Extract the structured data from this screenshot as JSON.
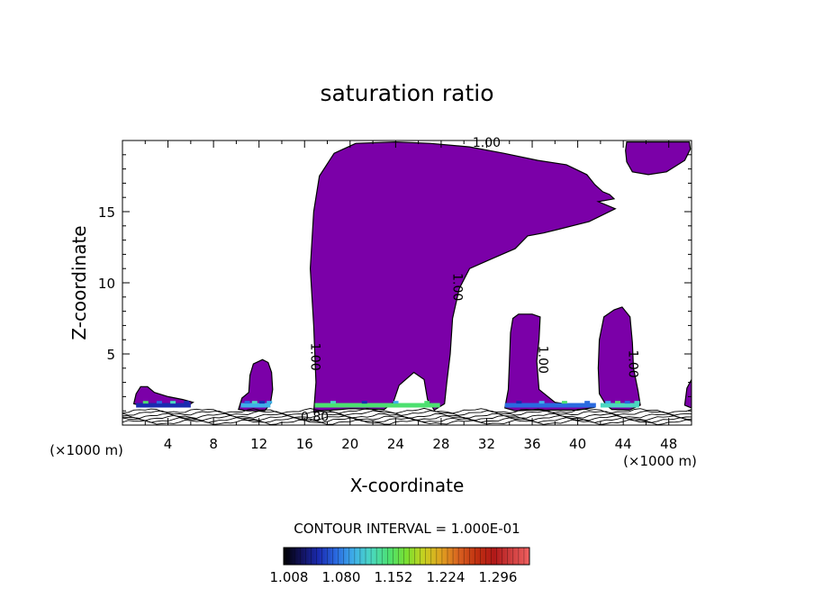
{
  "chart_data": {
    "type": "heatmap",
    "title": "saturation ratio",
    "xlabel": "X-coordinate",
    "ylabel": "Z-coordinate",
    "x_unit": "(×1000 m)",
    "xlim": [
      0,
      50
    ],
    "ylim": [
      0,
      20
    ],
    "x_ticks": [
      "4",
      "8",
      "12",
      "16",
      "20",
      "24",
      "28",
      "32",
      "36",
      "40",
      "44",
      "48"
    ],
    "y_ticks": [
      "5",
      "10",
      "15"
    ],
    "contour_labels": [
      {
        "text": "1.00",
        "x": 32,
        "y": 19.8,
        "angle": 0
      },
      {
        "text": "1.00",
        "x": 29.4,
        "y": 9.7,
        "angle": 90
      },
      {
        "text": "1.00",
        "x": 16.9,
        "y": 4.8,
        "angle": 90
      },
      {
        "text": "1.00",
        "x": 36.9,
        "y": 4.6,
        "angle": 90
      },
      {
        "text": "1.00",
        "x": 44.8,
        "y": 4.3,
        "angle": 90
      },
      {
        "text": "0.80",
        "x": 16.9,
        "y": 0.55,
        "angle": 0
      }
    ],
    "contour_interval": "CONTOUR INTERVAL = 1.000E-01",
    "colorbar": {
      "labels": [
        "1.008",
        "1.080",
        "1.152",
        "1.224",
        "1.296"
      ],
      "colors": [
        "#000000",
        "#12125a",
        "#1a2bb0",
        "#2a6ae0",
        "#3fb0e8",
        "#4ad8c0",
        "#4ce070",
        "#7adf30",
        "#c8d020",
        "#e0a020",
        "#d86020",
        "#c03010",
        "#b01818",
        "#d04040",
        "#f06060"
      ]
    },
    "fill_color": "#7b00a8",
    "saturated_regions": [
      {
        "name": "main-cloud",
        "points": [
          [
            16.8,
            0.9
          ],
          [
            17,
            3
          ],
          [
            16.8,
            7
          ],
          [
            16.5,
            11
          ],
          [
            16.8,
            15
          ],
          [
            17.3,
            17.5
          ],
          [
            18.6,
            19.1
          ],
          [
            20.5,
            19.8
          ],
          [
            24,
            19.9
          ],
          [
            27,
            19.8
          ],
          [
            30.5,
            19.55
          ],
          [
            33.5,
            19.1
          ],
          [
            36.5,
            18.6
          ],
          [
            39,
            18.3
          ],
          [
            40.8,
            17.6
          ],
          [
            41.5,
            16.9
          ],
          [
            42.2,
            16.4
          ],
          [
            42.8,
            16.2
          ],
          [
            43.2,
            15.9
          ],
          [
            41.8,
            15.7
          ],
          [
            43.3,
            15.2
          ],
          [
            41,
            14.3
          ],
          [
            38.5,
            13.8
          ],
          [
            37,
            13.5
          ],
          [
            35.6,
            13.3
          ],
          [
            34.5,
            12.4
          ],
          [
            32.5,
            11.7
          ],
          [
            30.5,
            11
          ],
          [
            29.6,
            9.6
          ],
          [
            29,
            7.5
          ],
          [
            28.8,
            5
          ],
          [
            28.5,
            3
          ],
          [
            28.3,
            1.5
          ],
          [
            27.4,
            1.05
          ],
          [
            26.8,
            1.8
          ],
          [
            26.5,
            3.2
          ],
          [
            25.6,
            3.7
          ],
          [
            24.3,
            2.8
          ],
          [
            23.8,
            1.6
          ],
          [
            23,
            1.1
          ],
          [
            20,
            1.15
          ],
          [
            17.6,
            1.0
          ]
        ]
      },
      {
        "name": "upper-right-cloud",
        "points": [
          [
            44.3,
            19.9
          ],
          [
            45.8,
            19.9
          ],
          [
            49.8,
            19.9
          ],
          [
            49.9,
            19.4
          ],
          [
            49.4,
            18.6
          ],
          [
            47.8,
            17.8
          ],
          [
            46.2,
            17.6
          ],
          [
            44.8,
            17.8
          ],
          [
            44.3,
            18.5
          ],
          [
            44.2,
            19.3
          ]
        ]
      },
      {
        "name": "left-cell",
        "points": [
          [
            1.0,
            1.5
          ],
          [
            1.2,
            2.2
          ],
          [
            1.6,
            2.7
          ],
          [
            2.2,
            2.7
          ],
          [
            2.8,
            2.3
          ],
          [
            4,
            2.0
          ],
          [
            5.3,
            1.8
          ],
          [
            6.2,
            1.6
          ],
          [
            5.8,
            1.4
          ],
          [
            4,
            1.3
          ],
          [
            2,
            1.3
          ]
        ]
      },
      {
        "name": "cell-12",
        "points": [
          [
            10.2,
            1.1
          ],
          [
            10.5,
            1.9
          ],
          [
            11.1,
            2.3
          ],
          [
            11.2,
            3.5
          ],
          [
            11.5,
            4.3
          ],
          [
            12.3,
            4.6
          ],
          [
            12.8,
            4.4
          ],
          [
            13.1,
            3.7
          ],
          [
            13.2,
            2.5
          ],
          [
            13.0,
            1.5
          ],
          [
            12.5,
            1.0
          ],
          [
            11,
            1.0
          ]
        ]
      },
      {
        "name": "cell-36",
        "points": [
          [
            33.6,
            1.2
          ],
          [
            33.9,
            2.5
          ],
          [
            34.0,
            4.5
          ],
          [
            34.1,
            6.5
          ],
          [
            34.3,
            7.5
          ],
          [
            34.8,
            7.8
          ],
          [
            36.0,
            7.8
          ],
          [
            36.7,
            7.6
          ],
          [
            36.6,
            6
          ],
          [
            36.4,
            4.5
          ],
          [
            36.6,
            2.5
          ],
          [
            38,
            1.6
          ],
          [
            40.5,
            1.3
          ],
          [
            41.5,
            1.25
          ],
          [
            40,
            1.05
          ],
          [
            36,
            1.05
          ],
          [
            34.5,
            1.0
          ]
        ]
      },
      {
        "name": "cell-44",
        "points": [
          [
            42.5,
            1.4
          ],
          [
            41.9,
            2.2
          ],
          [
            41.8,
            4
          ],
          [
            41.9,
            6
          ],
          [
            42.3,
            7.6
          ],
          [
            43.2,
            8.1
          ],
          [
            43.9,
            8.3
          ],
          [
            44.6,
            7.6
          ],
          [
            44.8,
            5.8
          ],
          [
            44.9,
            4
          ],
          [
            45.3,
            2.4
          ],
          [
            45.5,
            1.4
          ],
          [
            44.5,
            1.05
          ],
          [
            43,
            1.1
          ]
        ]
      },
      {
        "name": "cell-right-edge",
        "points": [
          [
            49.4,
            1.4
          ],
          [
            49.6,
            2.6
          ],
          [
            50,
            3.2
          ],
          [
            50,
            1.2
          ]
        ]
      }
    ]
  }
}
